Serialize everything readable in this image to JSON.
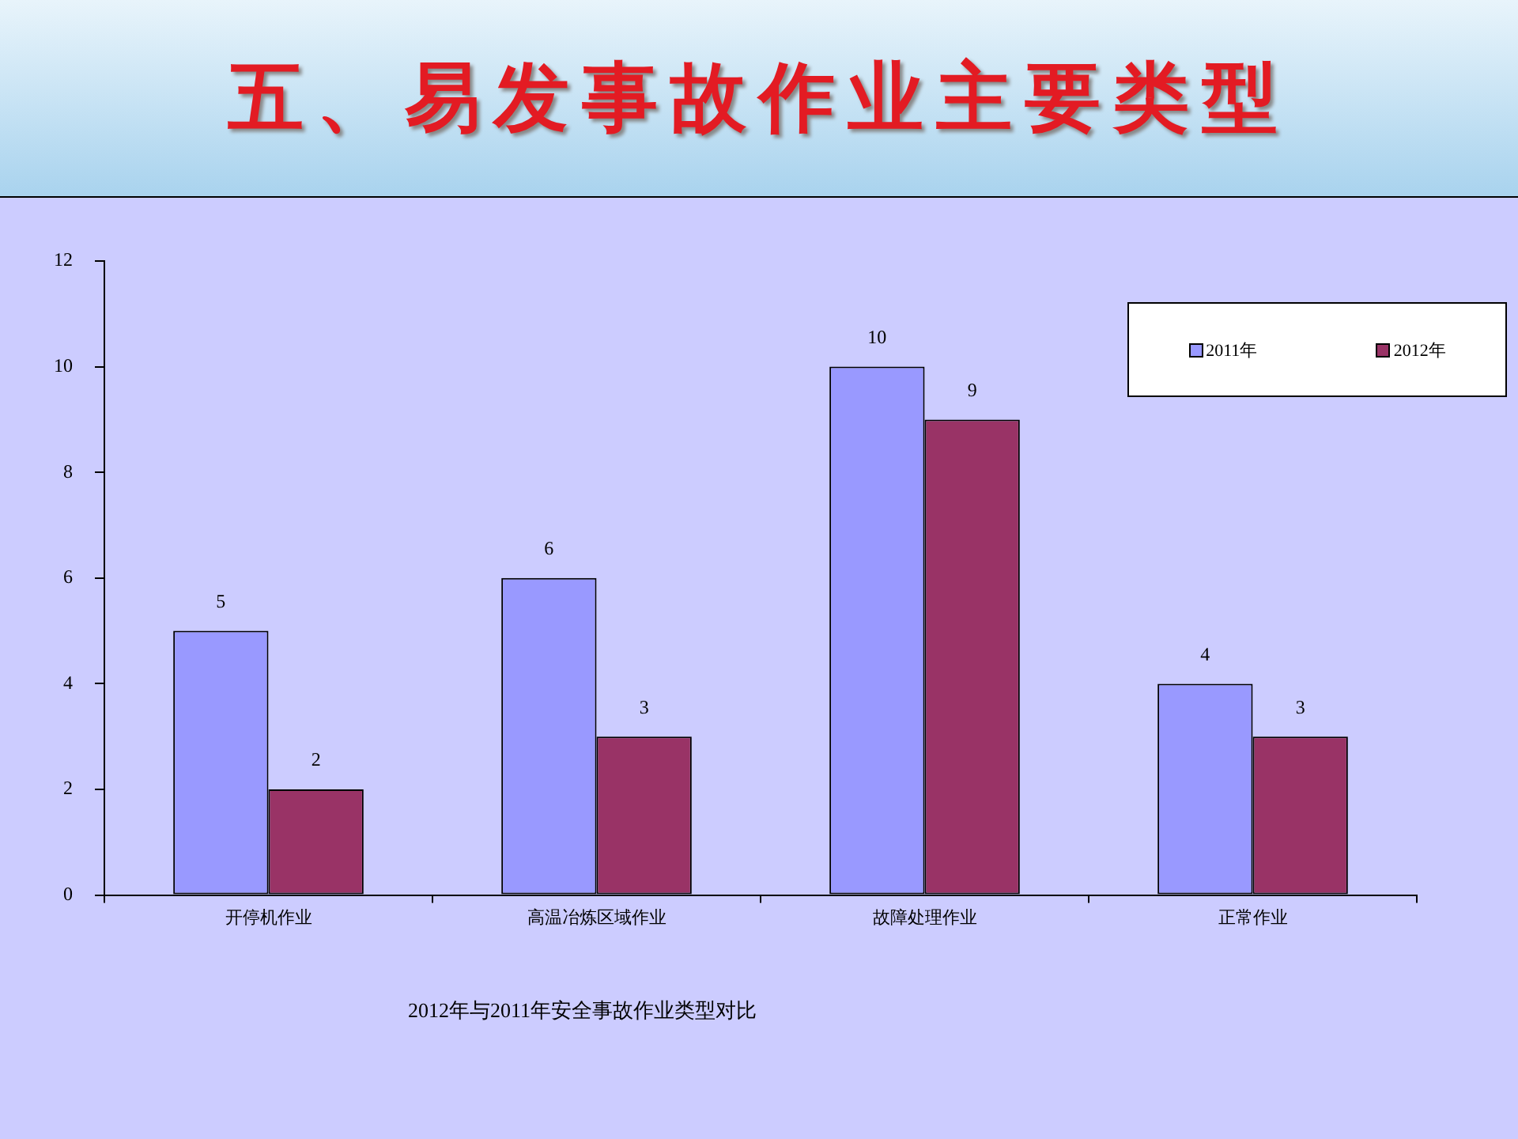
{
  "chart_data": {
    "type": "bar",
    "title": "五、易发事故作业主要类型",
    "categories": [
      "开停机作业",
      "高温冶炼区域作业",
      "故障处理作业",
      "正常作业"
    ],
    "series": [
      {
        "name": "2011年",
        "color": "#9999ff",
        "values": [
          5,
          6,
          10,
          4
        ]
      },
      {
        "name": "2012年",
        "color": "#993366",
        "values": [
          2,
          3,
          9,
          3
        ]
      }
    ],
    "ylim": [
      0,
      12
    ],
    "yticks": [
      0,
      2,
      4,
      6,
      8,
      10,
      12
    ],
    "grid": false,
    "legend": "top right",
    "data_labels": true,
    "annotations": [
      "2012年与2011年安全事故作业类型对比"
    ]
  }
}
